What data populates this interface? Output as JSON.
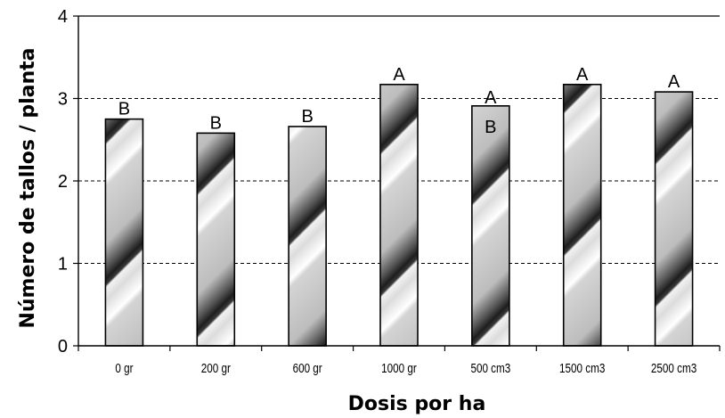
{
  "chart_data": {
    "type": "bar",
    "categories": [
      "0 gr",
      "200 gr",
      "600 gr",
      "1000 gr",
      "500 cm3",
      "1500 cm3",
      "2500 cm3"
    ],
    "values": [
      2.75,
      2.58,
      2.66,
      3.17,
      2.91,
      3.17,
      3.08
    ],
    "annotations": [
      [
        "B"
      ],
      [
        "B"
      ],
      [
        "B"
      ],
      [
        "A"
      ],
      [
        "A",
        "B"
      ],
      [
        "A"
      ],
      [
        "A"
      ]
    ],
    "xlabel": "Dosis  por ha",
    "ylabel": "Número de tallos / planta",
    "ylim": [
      0,
      4
    ],
    "yticks": [
      "0",
      "1",
      "2",
      "3",
      "4"
    ],
    "grid": "horizontal dashed",
    "legend": "none",
    "bar_fill": "diagonal gray gradient pattern",
    "colors": {
      "bar_light": "#d4d4d4",
      "bar_dark": "#1e1e1e",
      "axis": "#000000",
      "grid": "#000000"
    }
  }
}
